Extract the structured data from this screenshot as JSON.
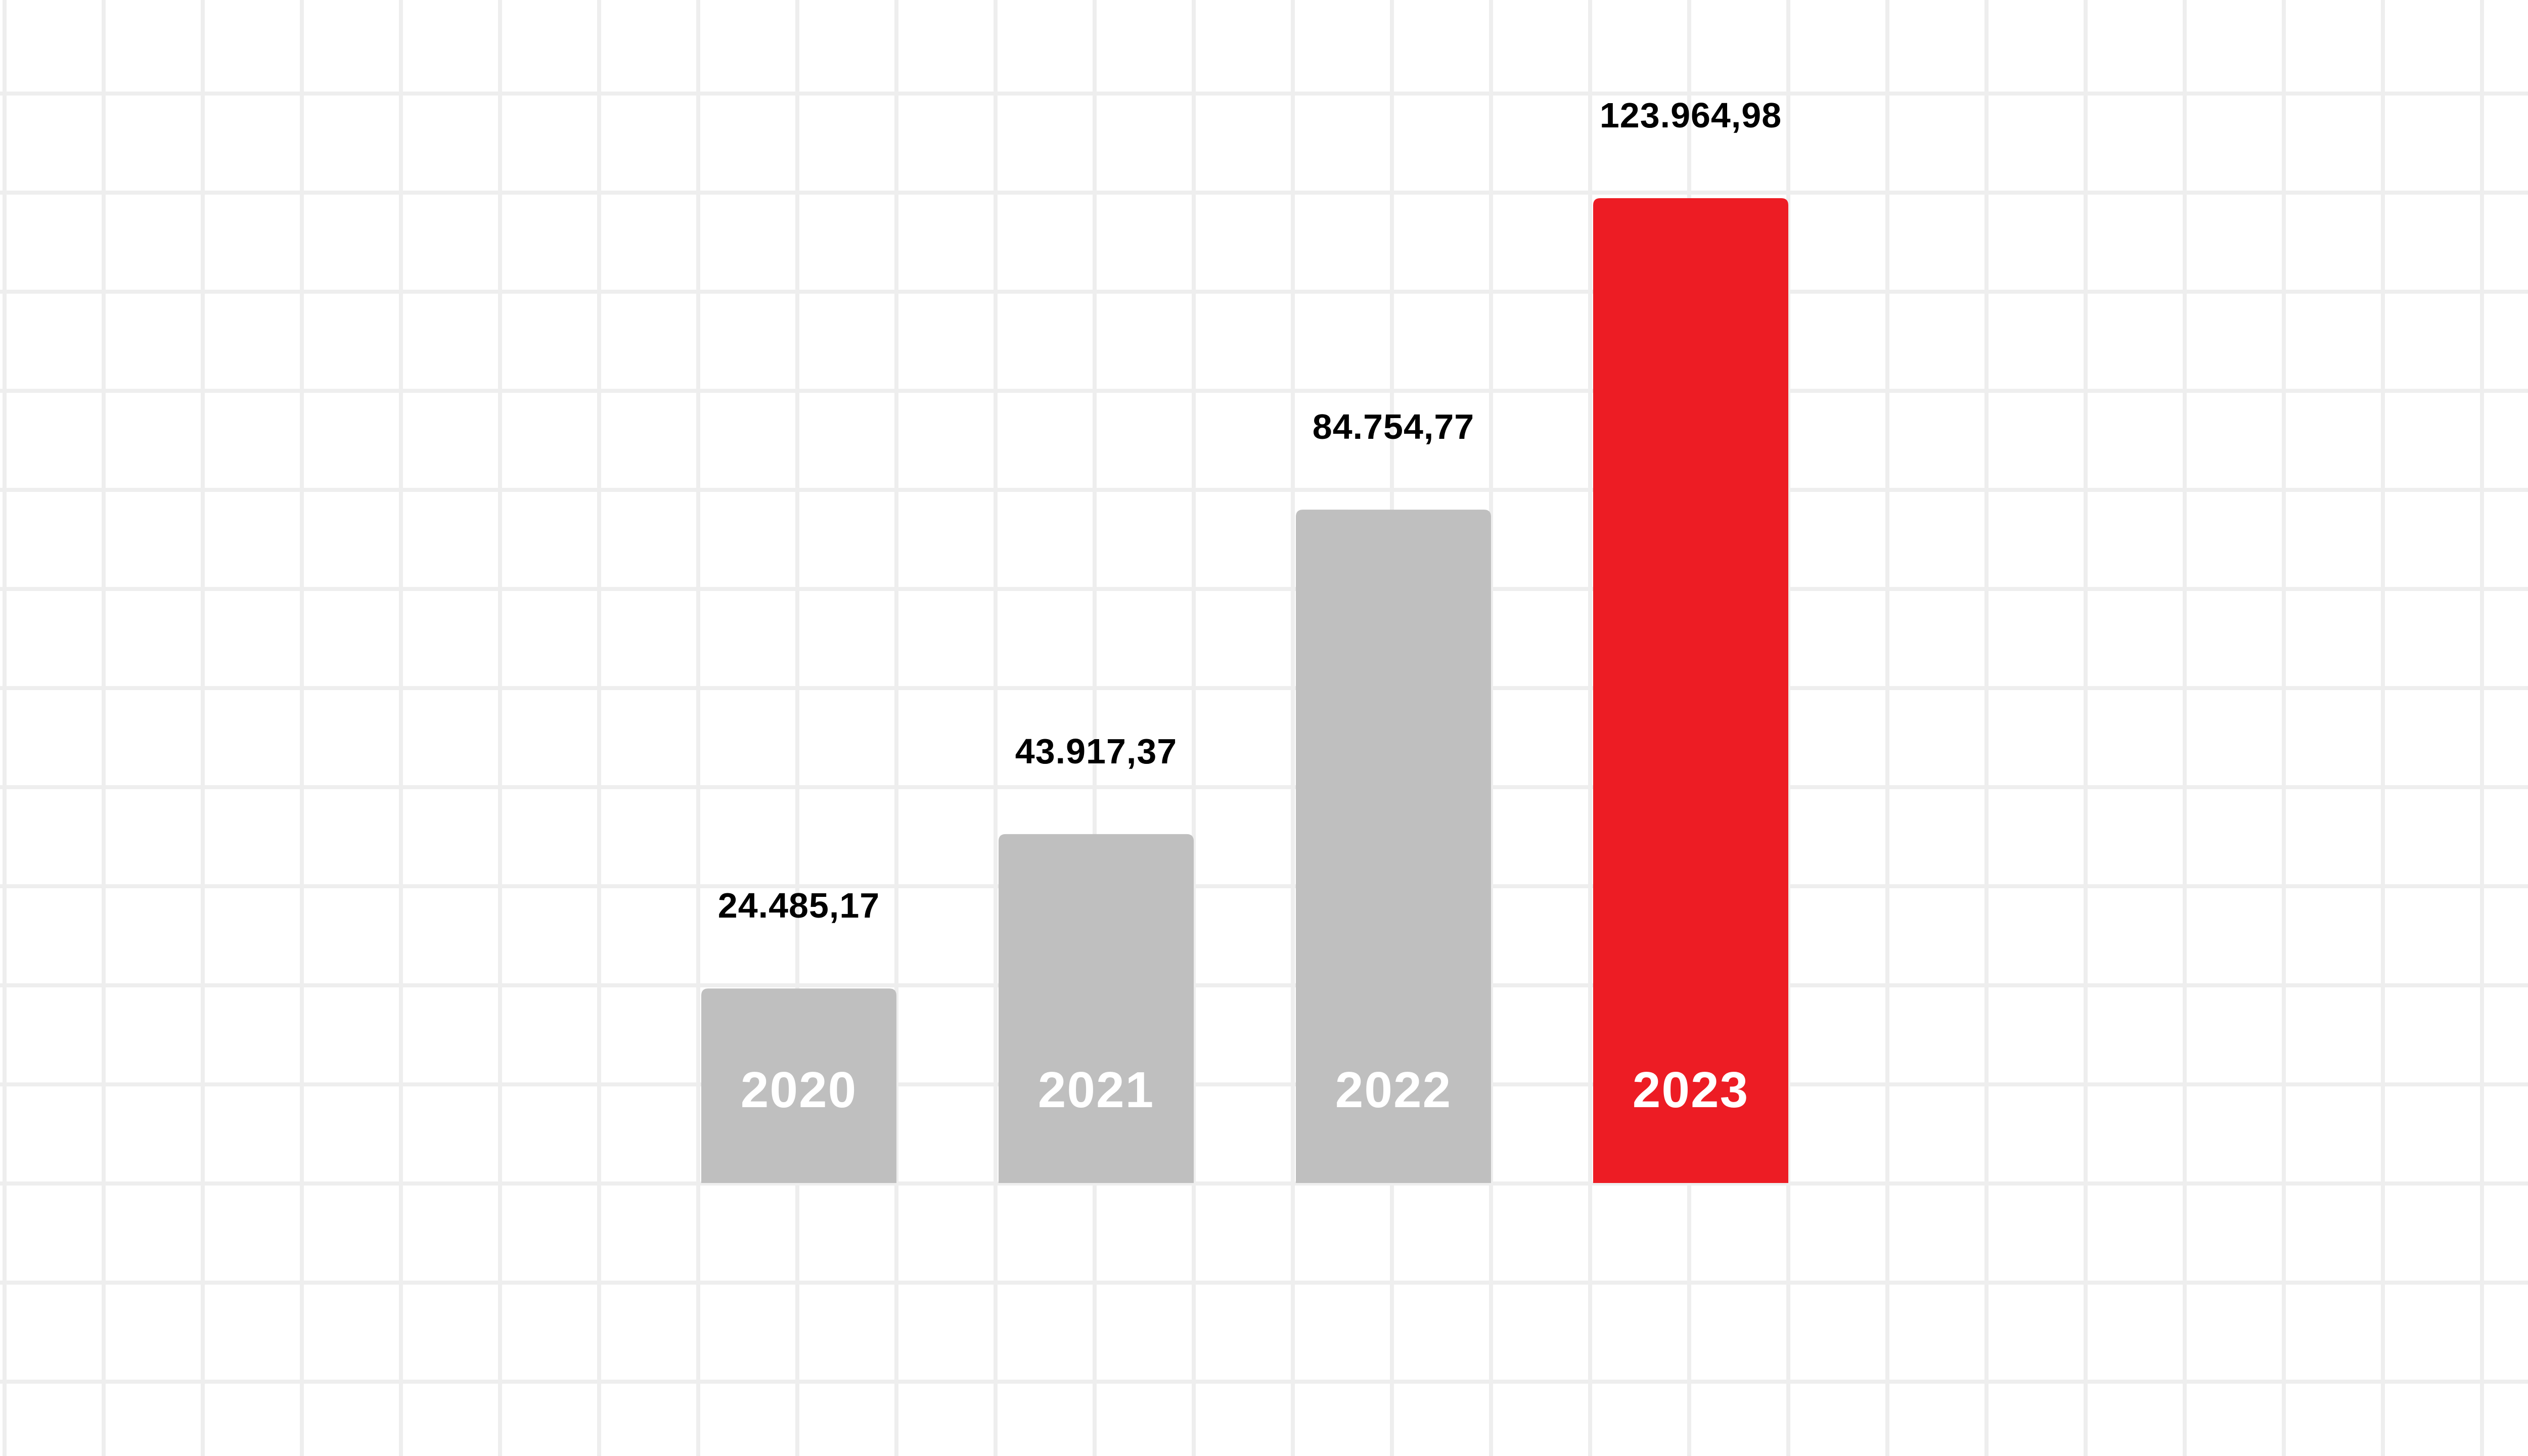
{
  "chart_data": {
    "type": "bar",
    "categories": [
      "2020",
      "2021",
      "2022",
      "2023"
    ],
    "values": [
      24485.17,
      43917.37,
      84754.77,
      123964.98
    ],
    "value_labels": [
      "24.485,17",
      "43.917,37",
      "84.754,77",
      "123.964,98"
    ],
    "title": "",
    "xlabel": "",
    "ylabel": "",
    "ylim": [
      0,
      123964.98
    ],
    "grid": true,
    "legend": "none",
    "bar_colors": [
      "#bfbfbf",
      "#bfbfbf",
      "#bfbfbf",
      "#ed1c24"
    ],
    "highlight_color": "#ed1c24",
    "default_color": "#bfbfbf",
    "category_label_color": "#ffffff",
    "value_label_color": "#000000",
    "grid_color": "#eeeeee"
  }
}
